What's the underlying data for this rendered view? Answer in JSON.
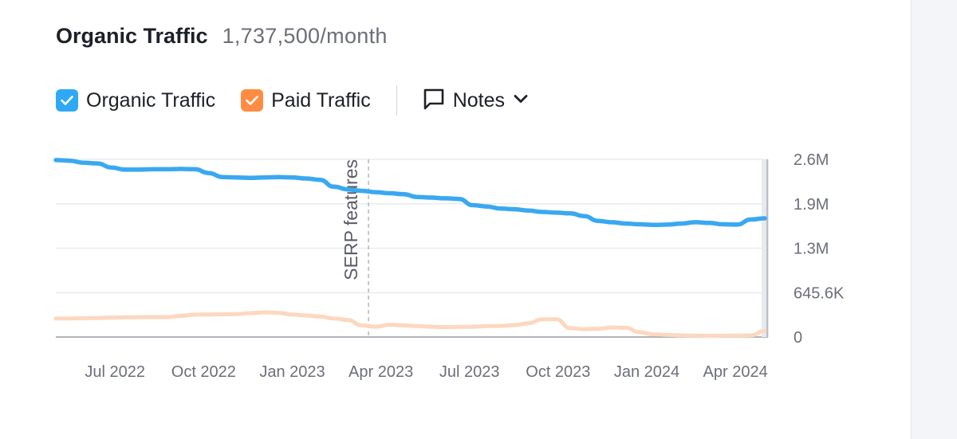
{
  "header": {
    "title": "Organic Traffic",
    "value": "1,737,500/month"
  },
  "legend": {
    "items": [
      {
        "label": "Organic Traffic",
        "color": "#2fa9f5",
        "checked": true
      },
      {
        "label": "Paid Traffic",
        "color": "#ff8c42",
        "checked": true
      }
    ],
    "notes_label": "Notes"
  },
  "chart_data": {
    "type": "line",
    "title": "Organic Traffic",
    "x_start": 2022.333,
    "x_end": 2024.333,
    "xlim": [
      2022.333,
      2024.342
    ],
    "ylim": [
      0,
      2600000
    ],
    "x_ticks": [
      {
        "x": 2022.5,
        "label": "Jul 2022"
      },
      {
        "x": 2022.75,
        "label": "Oct 2022"
      },
      {
        "x": 2023.0,
        "label": "Jan 2023"
      },
      {
        "x": 2023.25,
        "label": "Apr 2023"
      },
      {
        "x": 2023.5,
        "label": "Jul 2023"
      },
      {
        "x": 2023.75,
        "label": "Oct 2023"
      },
      {
        "x": 2024.0,
        "label": "Jan 2024"
      },
      {
        "x": 2024.25,
        "label": "Apr 2024"
      }
    ],
    "y_ticks": [
      {
        "value": 2600000,
        "label": "2.6M"
      },
      {
        "value": 1950000,
        "label": "1.9M"
      },
      {
        "value": 1300000,
        "label": "1.3M"
      },
      {
        "value": 645600,
        "label": "645.6K"
      },
      {
        "value": 0,
        "label": "0"
      }
    ],
    "annotations": [
      {
        "x": 2023.215,
        "label": "SERP features"
      }
    ],
    "series": [
      {
        "name": "Organic Traffic",
        "color": "#3aa8f1",
        "values": [
          2590000,
          2580000,
          2550000,
          2540000,
          2480000,
          2450000,
          2450000,
          2455000,
          2455000,
          2460000,
          2455000,
          2400000,
          2340000,
          2335000,
          2330000,
          2335000,
          2340000,
          2335000,
          2320000,
          2300000,
          2200000,
          2160000,
          2140000,
          2120000,
          2105000,
          2090000,
          2050000,
          2040000,
          2030000,
          2020000,
          1930000,
          1910000,
          1880000,
          1870000,
          1850000,
          1830000,
          1820000,
          1810000,
          1770000,
          1700000,
          1680000,
          1660000,
          1650000,
          1640000,
          1645000,
          1660000,
          1680000,
          1670000,
          1650000,
          1645000,
          1720000,
          1737500
        ]
      },
      {
        "name": "Paid Traffic",
        "color": "#fdd7bf",
        "values": [
          270000,
          272000,
          275000,
          278000,
          285000,
          288000,
          290000,
          292000,
          290000,
          310000,
          328000,
          330000,
          332000,
          335000,
          350000,
          362000,
          355000,
          330000,
          315000,
          300000,
          270000,
          250000,
          170000,
          150000,
          180000,
          170000,
          160000,
          150000,
          145000,
          148000,
          150000,
          160000,
          162000,
          175000,
          200000,
          260000,
          260000,
          130000,
          115000,
          120000,
          140000,
          135000,
          70000,
          40000,
          30000,
          25000,
          20000,
          18000,
          20000,
          20000,
          25000,
          90000
        ]
      }
    ]
  }
}
